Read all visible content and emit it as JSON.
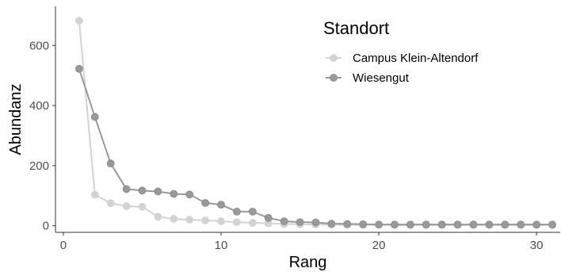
{
  "chart_data": {
    "type": "line",
    "xlabel": "Rang",
    "ylabel": "Abundanz",
    "xlim": [
      -0.5,
      31.5
    ],
    "ylim": [
      -22,
      730
    ],
    "x_ticks": [
      0,
      10,
      20,
      30
    ],
    "y_ticks": [
      0,
      200,
      400,
      600
    ],
    "grid": false,
    "legend": {
      "title": "Standort",
      "position": "top-right"
    },
    "series": [
      {
        "name": "Campus Klein-Altendorf",
        "color": "#d3d3d3",
        "x": [
          1,
          2,
          3,
          4,
          5,
          6,
          7,
          8,
          9,
          10,
          11,
          12,
          13,
          14,
          15,
          16,
          17,
          18,
          19,
          20,
          21,
          22,
          23,
          24,
          25,
          26,
          27,
          28,
          29,
          30,
          31
        ],
        "y": [
          682,
          103,
          75,
          65,
          63,
          30,
          23,
          20,
          18,
          15,
          12,
          10,
          8,
          6,
          5,
          4,
          3,
          3,
          3,
          3,
          2,
          2,
          2,
          2,
          2,
          2,
          2,
          2,
          2,
          2,
          2
        ]
      },
      {
        "name": "Wiesengut",
        "color": "#999999",
        "x": [
          1,
          2,
          3,
          4,
          5,
          6,
          7,
          8,
          9,
          10,
          11,
          12,
          13,
          14,
          15,
          16,
          17,
          18,
          19,
          20,
          21,
          22,
          23,
          24,
          25,
          26,
          27,
          28,
          29,
          30,
          31
        ],
        "y": [
          522,
          362,
          207,
          122,
          117,
          114,
          106,
          104,
          76,
          70,
          47,
          47,
          26,
          15,
          12,
          11,
          7,
          6,
          5,
          4,
          4,
          4,
          4,
          4,
          4,
          4,
          4,
          4,
          4,
          4,
          4
        ]
      }
    ]
  }
}
